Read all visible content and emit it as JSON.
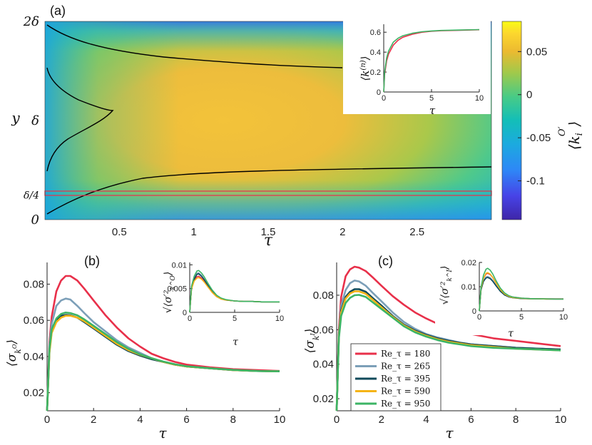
{
  "colors": {
    "Re180": "#e8304a",
    "Re265": "#7c9fb8",
    "Re395": "#0f4a5a",
    "Re590": "#f5b416",
    "Re950": "#3cb465",
    "marker": "#e8304a",
    "contour": "#000000"
  },
  "chart_data": [
    {
      "panel": "(a)",
      "type": "heatmap",
      "xlabel": "τ",
      "ylabel": "y",
      "x_ticks": [
        "0.5",
        "1",
        "1.5",
        "2",
        "2.5"
      ],
      "x_tick_values": [
        0.5,
        1,
        1.5,
        2,
        2.5
      ],
      "xlim": [
        0,
        3
      ],
      "y_ticks": [
        "0",
        "δ",
        "2δ"
      ],
      "y_tick_values": [
        0,
        1,
        2
      ],
      "marker_label": "δ/4",
      "marker_value": 0.25,
      "colorbar": {
        "label": "⟨k_i^{O'}⟩",
        "ticks": [
          "0.05",
          "0",
          "-0.05",
          "-0.1"
        ],
        "tick_values": [
          0.05,
          0,
          -0.05,
          -0.1
        ],
        "range": [
          -0.145,
          0.085
        ],
        "colormap": "parula"
      },
      "inset": {
        "type": "line",
        "ylabel": "⟨k^(n)⟩",
        "xlabel": "τ",
        "x_ticks": [
          "0",
          "5",
          "10"
        ],
        "y_ticks": [
          "0",
          "0.2",
          "0.4",
          "0.6"
        ],
        "xlim": [
          0,
          10
        ],
        "ylim": [
          0,
          0.68
        ],
        "x": [
          0,
          0.1,
          0.3,
          0.5,
          1,
          1.5,
          2,
          3,
          4,
          5,
          6,
          8,
          10
        ],
        "series": [
          {
            "color_key": "Re180",
            "values": [
              0,
              0.18,
              0.31,
              0.38,
              0.47,
              0.52,
              0.55,
              0.58,
              0.6,
              0.61,
              0.615,
              0.62,
              0.625
            ]
          },
          {
            "color_key": "Re950",
            "values": [
              0,
              0.2,
              0.34,
              0.41,
              0.5,
              0.54,
              0.565,
              0.59,
              0.605,
              0.613,
              0.618,
              0.622,
              0.626
            ]
          }
        ]
      }
    },
    {
      "panel": "(b)",
      "type": "line",
      "ylabel": "⟨σ_{k^O}⟩",
      "xlabel": "τ",
      "x_ticks": [
        "0",
        "2",
        "4",
        "6",
        "8",
        "10"
      ],
      "y_ticks": [
        "0.02",
        "0.04",
        "0.06",
        "0.08"
      ],
      "xlim": [
        0,
        10
      ],
      "ylim": [
        0.01,
        0.092
      ],
      "x": [
        0,
        0.1,
        0.2,
        0.4,
        0.6,
        0.8,
        1,
        1.3,
        1.6,
        2,
        2.5,
        3,
        3.5,
        4,
        4.5,
        5,
        5.5,
        6,
        7,
        8,
        9,
        10
      ],
      "series": [
        {
          "name": "Re_τ = 180",
          "color_key": "Re180",
          "values": [
            0.01,
            0.048,
            0.062,
            0.076,
            0.082,
            0.0845,
            0.0845,
            0.082,
            0.0775,
            0.071,
            0.063,
            0.056,
            0.05,
            0.0455,
            0.0415,
            0.039,
            0.037,
            0.0355,
            0.034,
            0.033,
            0.0325,
            0.032
          ]
        },
        {
          "name": "Re_τ = 265",
          "color_key": "Re265",
          "values": [
            0.01,
            0.046,
            0.058,
            0.068,
            0.071,
            0.072,
            0.0715,
            0.068,
            0.064,
            0.059,
            0.054,
            0.049,
            0.045,
            0.042,
            0.039,
            0.037,
            0.0355,
            0.0345,
            0.0335,
            0.0325,
            0.032,
            0.0318
          ]
        },
        {
          "name": "Re_τ = 395",
          "color_key": "Re395",
          "values": [
            0.01,
            0.043,
            0.054,
            0.06,
            0.0625,
            0.063,
            0.0628,
            0.0615,
            0.059,
            0.0555,
            0.051,
            0.0465,
            0.043,
            0.0405,
            0.0385,
            0.037,
            0.0355,
            0.0345,
            0.0335,
            0.0325,
            0.032,
            0.0318
          ]
        },
        {
          "name": "Re_τ = 590",
          "color_key": "Re590",
          "values": [
            0.01,
            0.042,
            0.053,
            0.059,
            0.0615,
            0.0625,
            0.0625,
            0.0615,
            0.0595,
            0.056,
            0.0515,
            0.047,
            0.0435,
            0.041,
            0.039,
            0.037,
            0.0355,
            0.0345,
            0.0335,
            0.0325,
            0.032,
            0.0318
          ]
        },
        {
          "name": "Re_τ = 950",
          "color_key": "Re950",
          "values": [
            0.01,
            0.044,
            0.055,
            0.061,
            0.0635,
            0.0643,
            0.064,
            0.0628,
            0.0605,
            0.057,
            0.0525,
            0.048,
            0.0442,
            0.0412,
            0.039,
            0.0372,
            0.0357,
            0.0346,
            0.0335,
            0.0326,
            0.032,
            0.0318
          ]
        }
      ],
      "inset": {
        "type": "line",
        "ylabel": "√⟨σ'^2_{k^O}⟩",
        "xlabel": "τ",
        "x_ticks": [
          "0",
          "5",
          "10"
        ],
        "y_ticks": [
          "0",
          "0.005",
          "0.01"
        ],
        "xlim": [
          0,
          10
        ],
        "ylim": [
          0,
          0.0105
        ],
        "x": [
          0,
          0.2,
          0.5,
          0.8,
          1,
          1.3,
          1.6,
          2,
          2.5,
          3,
          3.5,
          4,
          5,
          6,
          7,
          8,
          9,
          10
        ],
        "series": [
          {
            "color_key": "Re180",
            "values": [
              0,
              0.005,
              0.0068,
              0.0075,
              0.0076,
              0.0072,
              0.0066,
              0.0055,
              0.0042,
              0.0033,
              0.0028,
              0.0026,
              0.0024,
              0.0023,
              0.0023,
              0.0022,
              0.0022,
              0.0022
            ]
          },
          {
            "color_key": "Re265",
            "values": [
              0,
              0.0052,
              0.0072,
              0.0082,
              0.0083,
              0.0078,
              0.007,
              0.0058,
              0.0044,
              0.0034,
              0.0029,
              0.0026,
              0.0024,
              0.0023,
              0.0023,
              0.0022,
              0.0022,
              0.0022
            ]
          },
          {
            "color_key": "Re395",
            "values": [
              0,
              0.005,
              0.007,
              0.008,
              0.0081,
              0.0076,
              0.0069,
              0.0057,
              0.0043,
              0.0034,
              0.0029,
              0.0026,
              0.0024,
              0.0023,
              0.0023,
              0.0022,
              0.0022,
              0.0022
            ]
          },
          {
            "color_key": "Re590",
            "values": [
              0,
              0.0049,
              0.0066,
              0.0072,
              0.0073,
              0.007,
              0.0064,
              0.0054,
              0.0042,
              0.0033,
              0.0028,
              0.0026,
              0.0024,
              0.0023,
              0.0023,
              0.0022,
              0.0022,
              0.0022
            ]
          },
          {
            "color_key": "Re950",
            "values": [
              0,
              0.0055,
              0.0076,
              0.0087,
              0.0088,
              0.0083,
              0.0075,
              0.0062,
              0.0047,
              0.0036,
              0.003,
              0.0027,
              0.0024,
              0.0023,
              0.0023,
              0.0022,
              0.0022,
              0.0022
            ]
          }
        ]
      }
    },
    {
      "panel": "(c)",
      "type": "line",
      "ylabel": "⟨σ_{k^I}⟩",
      "xlabel": "τ",
      "x_ticks": [
        "0",
        "2",
        "4",
        "6",
        "8",
        "10"
      ],
      "y_ticks": [
        "0.02",
        "0.04",
        "0.06",
        "0.08"
      ],
      "xlim": [
        0,
        10
      ],
      "ylim": [
        0.013,
        0.099
      ],
      "x": [
        0,
        0.1,
        0.2,
        0.4,
        0.6,
        0.8,
        1,
        1.3,
        1.6,
        2,
        2.5,
        3,
        3.5,
        4,
        4.5,
        5,
        5.5,
        6,
        7,
        8,
        9,
        10
      ],
      "series": [
        {
          "name": "Re_τ = 180",
          "color_key": "Re180",
          "values": [
            0.013,
            0.06,
            0.079,
            0.091,
            0.095,
            0.0965,
            0.096,
            0.094,
            0.0905,
            0.0855,
            0.0795,
            0.0745,
            0.07,
            0.0665,
            0.0635,
            0.061,
            0.059,
            0.0575,
            0.055,
            0.0535,
            0.052,
            0.0505
          ]
        },
        {
          "name": "Re_τ = 265",
          "color_key": "Re265",
          "values": [
            0.013,
            0.058,
            0.074,
            0.083,
            0.087,
            0.0885,
            0.088,
            0.0855,
            0.0815,
            0.0765,
            0.07,
            0.0645,
            0.0605,
            0.0575,
            0.0555,
            0.054,
            0.0525,
            0.0515,
            0.0505,
            0.0495,
            0.049,
            0.0485
          ]
        },
        {
          "name": "Re_τ = 395",
          "color_key": "Re395",
          "values": [
            0.013,
            0.057,
            0.071,
            0.079,
            0.082,
            0.0835,
            0.0835,
            0.082,
            0.0785,
            0.074,
            0.068,
            0.063,
            0.0595,
            0.057,
            0.055,
            0.0535,
            0.0525,
            0.0515,
            0.0505,
            0.0495,
            0.049,
            0.0485
          ]
        },
        {
          "name": "Re_τ = 590",
          "color_key": "Re590",
          "values": [
            0.013,
            0.056,
            0.07,
            0.078,
            0.081,
            0.0822,
            0.0822,
            0.0808,
            0.0775,
            0.073,
            0.0675,
            0.0625,
            0.059,
            0.0565,
            0.0545,
            0.053,
            0.052,
            0.051,
            0.05,
            0.049,
            0.0485,
            0.048
          ]
        },
        {
          "name": "Re_τ = 950",
          "color_key": "Re950",
          "values": [
            0.013,
            0.055,
            0.068,
            0.0755,
            0.0785,
            0.08,
            0.0802,
            0.079,
            0.076,
            0.072,
            0.067,
            0.062,
            0.0585,
            0.056,
            0.054,
            0.0525,
            0.0515,
            0.0505,
            0.0495,
            0.049,
            0.0485,
            0.048
          ]
        }
      ],
      "legend": {
        "placement": "bottom-left",
        "entries": [
          "Re_τ = 180",
          "Re_τ = 265",
          "Re_τ = 395",
          "Re_τ = 590",
          "Re_τ = 950"
        ]
      },
      "inset": {
        "type": "line",
        "ylabel": "√⟨σ'^2_{k^I}⟩",
        "xlabel": "τ",
        "x_ticks": [
          "0",
          "5",
          "10"
        ],
        "y_ticks": [
          "0",
          "0.01",
          "0.02"
        ],
        "xlim": [
          0,
          10
        ],
        "ylim": [
          0,
          0.02
        ],
        "x": [
          0,
          0.2,
          0.5,
          0.8,
          1,
          1.3,
          1.6,
          2,
          2.5,
          3,
          3.5,
          4,
          5,
          6,
          7,
          8,
          9,
          10
        ],
        "series": [
          {
            "color_key": "Re180",
            "values": [
              0,
              0.009,
              0.0135,
              0.0152,
              0.0155,
              0.015,
              0.0138,
              0.0115,
              0.009,
              0.0072,
              0.0062,
              0.0057,
              0.0053,
              0.0051,
              0.005,
              0.005,
              0.005,
              0.005
            ]
          },
          {
            "color_key": "Re265",
            "values": [
              0,
              0.0088,
              0.0125,
              0.014,
              0.0142,
              0.0137,
              0.0126,
              0.0106,
              0.0083,
              0.0067,
              0.0058,
              0.0054,
              0.0051,
              0.005,
              0.005,
              0.0049,
              0.0049,
              0.0049
            ]
          },
          {
            "color_key": "Re395",
            "values": [
              0,
              0.0087,
              0.0122,
              0.0136,
              0.0138,
              0.0133,
              0.0122,
              0.0103,
              0.0081,
              0.0066,
              0.0058,
              0.0054,
              0.0051,
              0.005,
              0.005,
              0.0049,
              0.0049,
              0.0049
            ]
          },
          {
            "color_key": "Re590",
            "values": [
              0,
              0.0092,
              0.0135,
              0.0155,
              0.0158,
              0.0152,
              0.0138,
              0.0114,
              0.0088,
              0.007,
              0.006,
              0.0055,
              0.0052,
              0.005,
              0.005,
              0.0049,
              0.0049,
              0.0049
            ]
          },
          {
            "color_key": "Re950",
            "values": [
              0,
              0.0098,
              0.0148,
              0.0172,
              0.0176,
              0.0168,
              0.0152,
              0.0124,
              0.0094,
              0.0074,
              0.0063,
              0.0057,
              0.0053,
              0.0051,
              0.005,
              0.005,
              0.0049,
              0.0049
            ]
          }
        ]
      }
    }
  ]
}
